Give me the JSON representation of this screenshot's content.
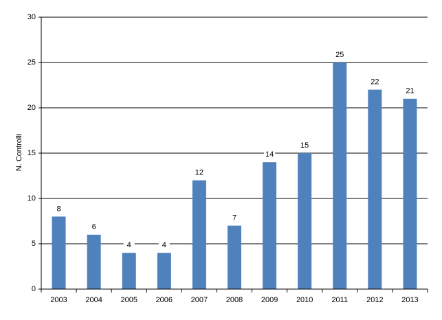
{
  "chart_data": {
    "type": "bar",
    "y_label": "N. Controlli",
    "categories": [
      "2003",
      "2004",
      "2005",
      "2006",
      "2007",
      "2008",
      "2009",
      "2010",
      "2011",
      "2012",
      "2013"
    ],
    "values": [
      8,
      6,
      4,
      4,
      12,
      7,
      14,
      15,
      25,
      22,
      21
    ],
    "color": "#4f81bd",
    "ylim": [
      0,
      30
    ],
    "yticks": [
      0,
      5,
      10,
      15,
      20,
      25,
      30
    ],
    "grid": true
  }
}
